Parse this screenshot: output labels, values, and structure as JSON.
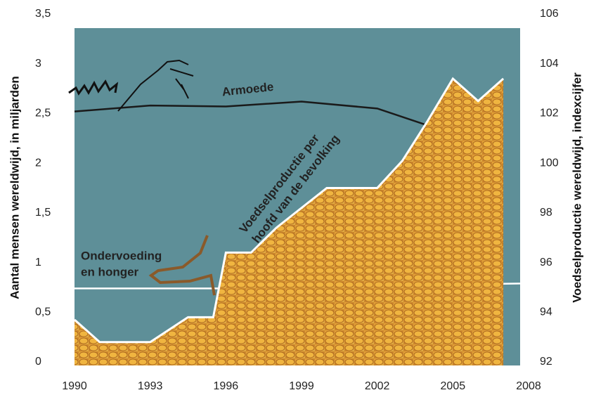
{
  "chart_data": {
    "type": "line",
    "y_label": "Aantal mensen wereldwijd, in miljarden",
    "y2_label": "Voedselproductie wereldwijd, indexcijfer",
    "xlim": [
      1990,
      2008
    ],
    "xticks": [
      1990,
      1993,
      1996,
      1999,
      2002,
      2005,
      2008
    ],
    "ylim": [
      0,
      3.5
    ],
    "yticks": [
      0,
      {
        "value": 0.5,
        "label": "0,5"
      },
      1,
      {
        "value": 1.5,
        "label": "1,5"
      },
      2,
      {
        "value": 2.5,
        "label": "2,5"
      },
      3,
      {
        "value": 3.5,
        "label": "3,5"
      }
    ],
    "y2lim": [
      92,
      106
    ],
    "y2ticks": [
      92,
      94,
      96,
      98,
      100,
      102,
      104,
      106
    ],
    "series": [
      {
        "label_lines": [
          "Armoede"
        ],
        "color": "#1a1a1a",
        "x": [
          1990,
          1993,
          1996,
          1999,
          2002,
          2004,
          2005
        ],
        "values": [
          2.52,
          2.58,
          2.57,
          2.62,
          2.55,
          2.38,
          2.33
        ]
      },
      {
        "label_lines": [
          "Ondervoeding",
          "en honger"
        ],
        "color": "#ffffff",
        "x": [
          1990,
          1993,
          1996,
          1999,
          2002,
          2005,
          2008
        ],
        "values": [
          0.74,
          0.74,
          0.74,
          0.76,
          0.77,
          0.78,
          0.79
        ]
      },
      {
        "label_lines": [
          "Voedselproductie per",
          "hoofd van de bevolking"
        ],
        "color": "#ffffff",
        "axis": "y2",
        "x": [
          1990,
          1991,
          1993,
          1994.5,
          1995.5,
          1996,
          1997,
          1998,
          1999,
          2000,
          2001,
          2002,
          2003,
          2004,
          2005,
          2006,
          2007
        ],
        "values": [
          93.7,
          92.8,
          92.8,
          93.8,
          93.8,
          96.4,
          96.4,
          97.4,
          98.2,
          99.0,
          99.0,
          99.0,
          100.1,
          101.7,
          103.4,
          102.5,
          103.4
        ]
      }
    ]
  }
}
